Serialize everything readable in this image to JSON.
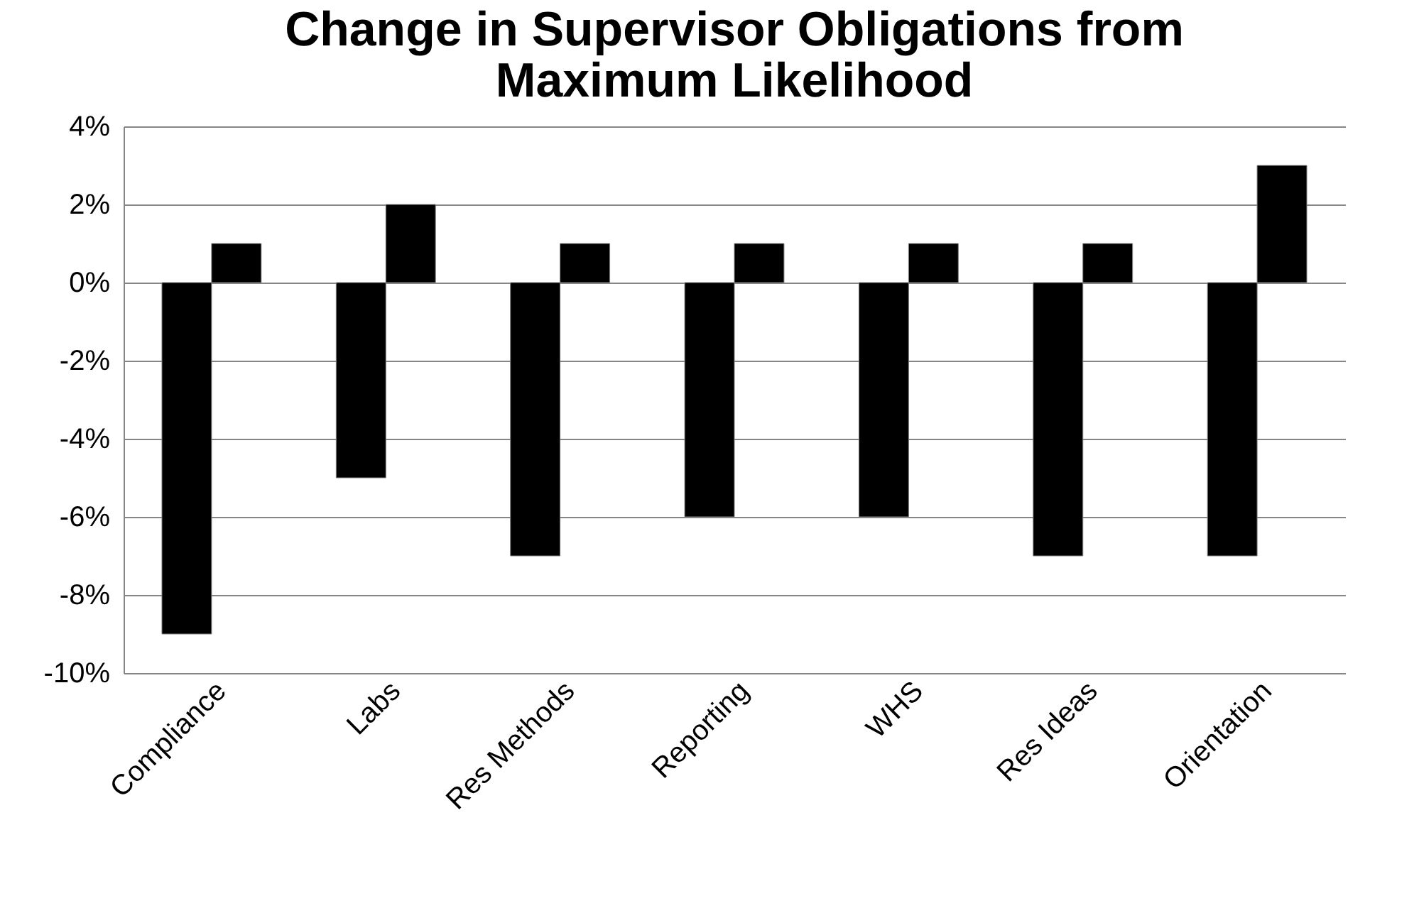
{
  "chart_data": {
    "type": "bar",
    "title": [
      "Change in Supervisor Obligations from",
      "Maximum Likelihood"
    ],
    "categories": [
      "Compliance",
      "Labs",
      "Res Methods",
      "Reporting",
      "WHS",
      "Res Ideas",
      "Orientation"
    ],
    "series": [
      {
        "color": "#000000",
        "values": [
          -9,
          -5,
          -7,
          -6,
          -6,
          -7,
          -7
        ]
      },
      {
        "color": "#000000",
        "values": [
          1,
          2,
          1,
          1,
          1,
          1,
          3
        ]
      }
    ],
    "ylim": [
      -10,
      4
    ],
    "yticks": [
      {
        "value": -10,
        "label": "-10%"
      },
      {
        "value": -8,
        "label": "-8%"
      },
      {
        "value": -6,
        "label": "-6%"
      },
      {
        "value": -4,
        "label": "-4%"
      },
      {
        "value": -2,
        "label": "-2%"
      },
      {
        "value": 0,
        "label": "0%"
      },
      {
        "value": 2,
        "label": "2%"
      },
      {
        "value": 4,
        "label": "4%"
      }
    ],
    "grid": true,
    "legend": false
  }
}
